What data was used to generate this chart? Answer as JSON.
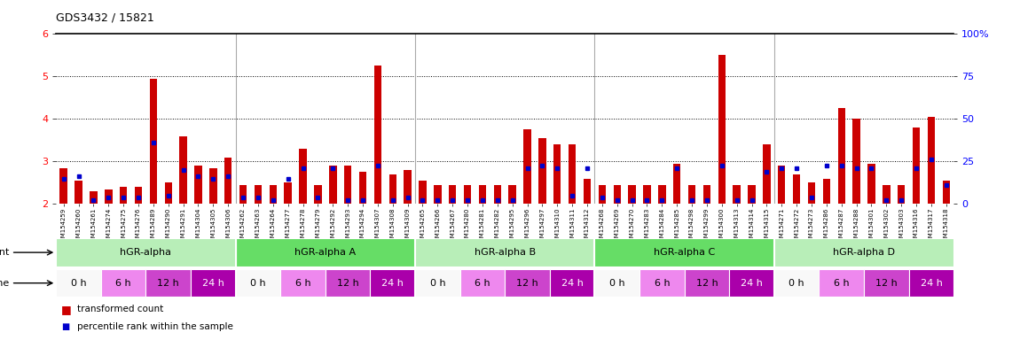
{
  "title": "GDS3432 / 15821",
  "samples": [
    "GSM154259",
    "GSM154260",
    "GSM154261",
    "GSM154274",
    "GSM154275",
    "GSM154276",
    "GSM154289",
    "GSM154290",
    "GSM154291",
    "GSM154304",
    "GSM154305",
    "GSM154306",
    "GSM154262",
    "GSM154263",
    "GSM154264",
    "GSM154277",
    "GSM154278",
    "GSM154279",
    "GSM154292",
    "GSM154293",
    "GSM154294",
    "GSM154307",
    "GSM154308",
    "GSM154309",
    "GSM154265",
    "GSM154266",
    "GSM154267",
    "GSM154280",
    "GSM154281",
    "GSM154282",
    "GSM154295",
    "GSM154296",
    "GSM154297",
    "GSM154310",
    "GSM154311",
    "GSM154312",
    "GSM154268",
    "GSM154269",
    "GSM154270",
    "GSM154283",
    "GSM154284",
    "GSM154285",
    "GSM154298",
    "GSM154299",
    "GSM154300",
    "GSM154313",
    "GSM154314",
    "GSM154315",
    "GSM154271",
    "GSM154272",
    "GSM154273",
    "GSM154286",
    "GSM154287",
    "GSM154288",
    "GSM154301",
    "GSM154302",
    "GSM154303",
    "GSM154316",
    "GSM154317",
    "GSM154318"
  ],
  "red_values": [
    2.85,
    2.55,
    2.3,
    2.35,
    2.4,
    2.4,
    4.95,
    2.5,
    3.6,
    2.9,
    2.85,
    3.1,
    2.45,
    2.45,
    2.45,
    2.5,
    3.3,
    2.45,
    2.9,
    2.9,
    2.75,
    5.25,
    2.7,
    2.8,
    2.55,
    2.45,
    2.45,
    2.45,
    2.45,
    2.45,
    2.45,
    3.75,
    3.55,
    3.4,
    3.4,
    2.6,
    2.45,
    2.45,
    2.45,
    2.45,
    2.45,
    2.95,
    2.45,
    2.45,
    5.5,
    2.45,
    2.45,
    3.4,
    2.9,
    2.7,
    2.5,
    2.6,
    4.25,
    4.0,
    2.95,
    2.45,
    2.45,
    3.8,
    4.05,
    2.55
  ],
  "blue_values": [
    2.6,
    2.65,
    2.1,
    2.15,
    2.15,
    2.15,
    3.45,
    2.2,
    2.8,
    2.65,
    2.6,
    2.65,
    2.15,
    2.15,
    2.1,
    2.6,
    2.85,
    2.15,
    2.85,
    2.1,
    2.1,
    2.9,
    2.1,
    2.15,
    2.1,
    2.1,
    2.1,
    2.1,
    2.1,
    2.1,
    2.1,
    2.85,
    2.9,
    2.85,
    2.2,
    2.85,
    2.15,
    2.1,
    2.1,
    2.1,
    2.1,
    2.85,
    2.1,
    2.1,
    2.9,
    2.1,
    2.1,
    2.75,
    2.85,
    2.85,
    2.15,
    2.9,
    2.9,
    2.85,
    2.85,
    2.1,
    2.1,
    2.85,
    3.05,
    2.45
  ],
  "agents": [
    {
      "label": "hGR-alpha",
      "start": 0,
      "end": 12,
      "color": "#b8eeb8"
    },
    {
      "label": "hGR-alpha A",
      "start": 12,
      "end": 24,
      "color": "#66dd66"
    },
    {
      "label": "hGR-alpha B",
      "start": 24,
      "end": 36,
      "color": "#b8eeb8"
    },
    {
      "label": "hGR-alpha C",
      "start": 36,
      "end": 48,
      "color": "#66dd66"
    },
    {
      "label": "hGR-alpha D",
      "start": 48,
      "end": 60,
      "color": "#b8eeb8"
    }
  ],
  "times": [
    {
      "label": "0 h",
      "color": "#f8f8f8",
      "text_color": "#000000",
      "start": 0,
      "end": 3
    },
    {
      "label": "6 h",
      "color": "#ee88ee",
      "text_color": "#000000",
      "start": 3,
      "end": 6
    },
    {
      "label": "12 h",
      "color": "#cc44cc",
      "text_color": "#000000",
      "start": 6,
      "end": 9
    },
    {
      "label": "24 h",
      "color": "#aa00aa",
      "text_color": "#ffffff",
      "start": 9,
      "end": 12
    },
    {
      "label": "0 h",
      "color": "#f8f8f8",
      "text_color": "#000000",
      "start": 12,
      "end": 15
    },
    {
      "label": "6 h",
      "color": "#ee88ee",
      "text_color": "#000000",
      "start": 15,
      "end": 18
    },
    {
      "label": "12 h",
      "color": "#cc44cc",
      "text_color": "#000000",
      "start": 18,
      "end": 21
    },
    {
      "label": "24 h",
      "color": "#aa00aa",
      "text_color": "#ffffff",
      "start": 21,
      "end": 24
    },
    {
      "label": "0 h",
      "color": "#f8f8f8",
      "text_color": "#000000",
      "start": 24,
      "end": 27
    },
    {
      "label": "6 h",
      "color": "#ee88ee",
      "text_color": "#000000",
      "start": 27,
      "end": 30
    },
    {
      "label": "12 h",
      "color": "#cc44cc",
      "text_color": "#000000",
      "start": 30,
      "end": 33
    },
    {
      "label": "24 h",
      "color": "#aa00aa",
      "text_color": "#ffffff",
      "start": 33,
      "end": 36
    },
    {
      "label": "0 h",
      "color": "#f8f8f8",
      "text_color": "#000000",
      "start": 36,
      "end": 39
    },
    {
      "label": "6 h",
      "color": "#ee88ee",
      "text_color": "#000000",
      "start": 39,
      "end": 42
    },
    {
      "label": "12 h",
      "color": "#cc44cc",
      "text_color": "#000000",
      "start": 42,
      "end": 45
    },
    {
      "label": "24 h",
      "color": "#aa00aa",
      "text_color": "#ffffff",
      "start": 45,
      "end": 48
    },
    {
      "label": "0 h",
      "color": "#f8f8f8",
      "text_color": "#000000",
      "start": 48,
      "end": 51
    },
    {
      "label": "6 h",
      "color": "#ee88ee",
      "text_color": "#000000",
      "start": 51,
      "end": 54
    },
    {
      "label": "12 h",
      "color": "#cc44cc",
      "text_color": "#000000",
      "start": 54,
      "end": 57
    },
    {
      "label": "24 h",
      "color": "#aa00aa",
      "text_color": "#ffffff",
      "start": 57,
      "end": 60
    }
  ],
  "ylim": [
    2.0,
    6.0
  ],
  "yticks": [
    2,
    3,
    4,
    5,
    6
  ],
  "right_yticks": [
    0,
    25,
    50,
    75,
    100
  ],
  "right_yticklabels": [
    "0",
    "25",
    "50",
    "75",
    "100%"
  ],
  "bar_color": "#cc0000",
  "dot_color": "#0000cc",
  "group_boundaries": [
    12,
    24,
    36,
    48
  ]
}
